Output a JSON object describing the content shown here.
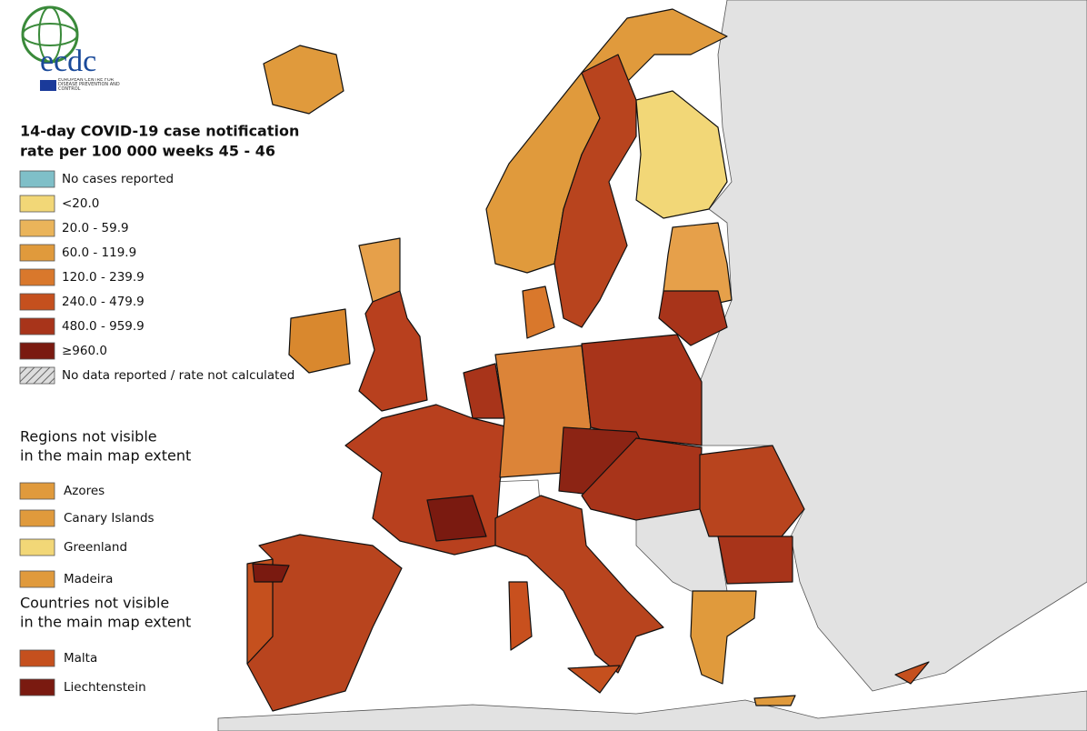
{
  "logo": {
    "acronym": "ecdc",
    "subtitle": "EUROPEAN CENTRE FOR DISEASE PREVENTION AND CONTROL"
  },
  "legend": {
    "title_lines": [
      "14-day COVID-19 case notification",
      "rate per 100 000 weeks 45 - 46"
    ],
    "items": [
      {
        "label": "No cases reported",
        "color": "#7fbfc8"
      },
      {
        "label": "<20.0",
        "color": "#f2d777"
      },
      {
        "label": "20.0 - 59.9",
        "color": "#eab45a"
      },
      {
        "label": "60.0 - 119.9",
        "color": "#e09a3c"
      },
      {
        "label": "120.0 - 239.9",
        "color": "#d9782c"
      },
      {
        "label": "240.0 - 479.9",
        "color": "#c5501e"
      },
      {
        "label": "480.0 - 959.9",
        "color": "#a8341a"
      },
      {
        "label": "≥960.0",
        "color": "#7a1a10"
      },
      {
        "label": "No data reported / rate not calculated",
        "pattern": "hatch"
      }
    ]
  },
  "regions_not_visible": {
    "title_lines": [
      "Regions not visible",
      "in the main map extent"
    ],
    "items": [
      {
        "label": "Azores",
        "color": "#e09a3c"
      },
      {
        "label": "Canary Islands",
        "color": "#e09a3c"
      },
      {
        "label": "Greenland",
        "color": "#f2d777"
      },
      {
        "label": "Madeira",
        "color": "#e09a3c"
      }
    ]
  },
  "countries_not_visible": {
    "title_lines": [
      "Countries not visible",
      "in the main map extent"
    ],
    "items": [
      {
        "label": "Malta",
        "color": "#c5501e"
      },
      {
        "label": "Liechtenstein",
        "color": "#7a1a10"
      }
    ]
  }
}
